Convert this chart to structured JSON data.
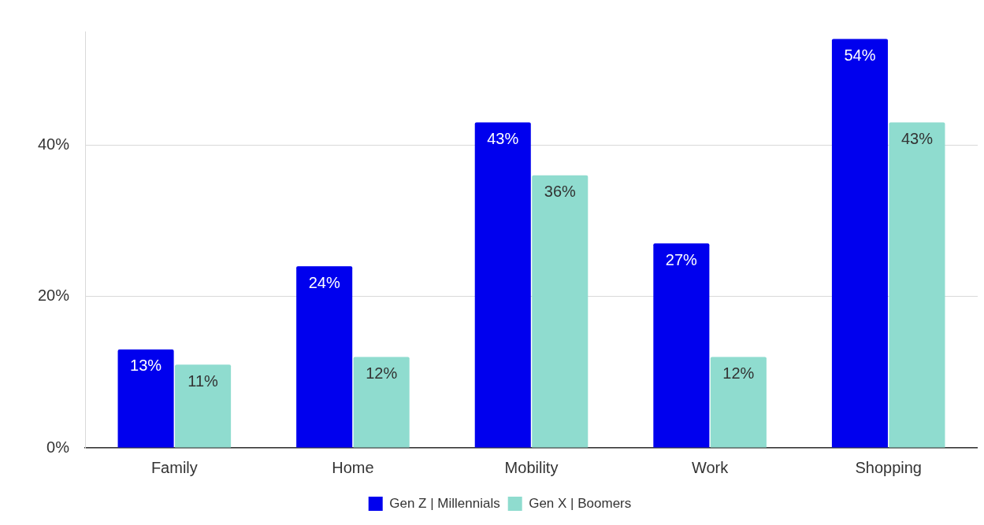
{
  "chart_data": {
    "type": "bar",
    "categories": [
      "Family",
      "Home",
      "Mobility",
      "Work",
      "Shopping"
    ],
    "series": [
      {
        "name": "Gen Z | Millennials",
        "color": "#0000ee",
        "values": [
          13,
          24,
          43,
          27,
          54
        ],
        "value_labels": [
          "13%",
          "24%",
          "43%",
          "27%",
          "54%"
        ]
      },
      {
        "name": "Gen X | Boomers",
        "color": "#8fdccf",
        "values": [
          11,
          12,
          36,
          12,
          43
        ],
        "value_labels": [
          "11%",
          "12%",
          "36%",
          "12%",
          "43%"
        ]
      }
    ],
    "ylim": [
      0,
      55
    ],
    "yticks": [
      {
        "value": 0,
        "label": "0%"
      },
      {
        "value": 20,
        "label": "20%"
      },
      {
        "value": 40,
        "label": "40%"
      }
    ],
    "grid": "y",
    "legend": "bottom"
  }
}
